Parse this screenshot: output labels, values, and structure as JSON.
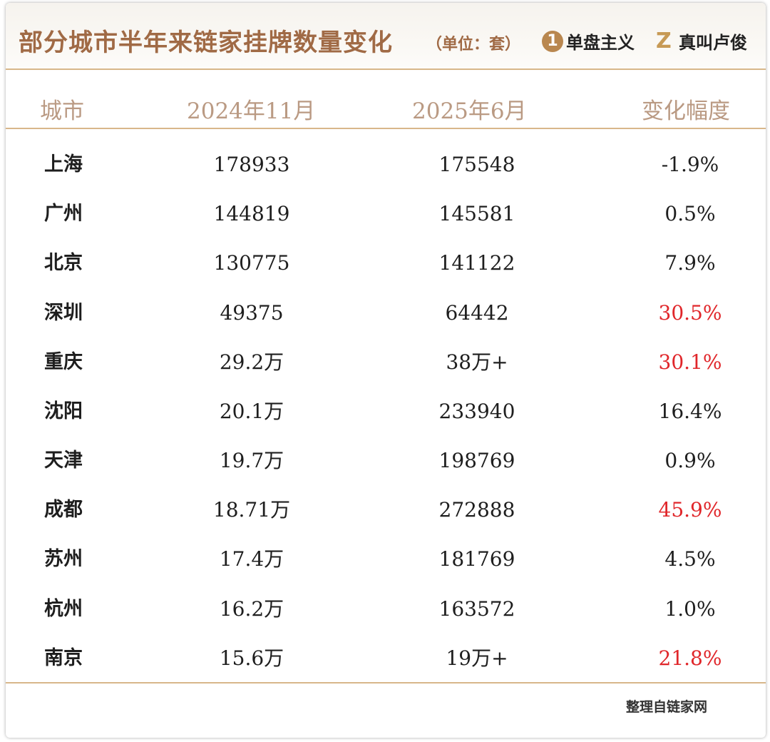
{
  "header": {
    "title": "部分城市半年来链家挂牌数量变化",
    "unit": "（单位：套）",
    "brand1": {
      "mark": "1",
      "name": "单盘主义"
    },
    "brand2": {
      "mark": "Z",
      "name": "真叫卢俊"
    }
  },
  "table": {
    "columns": [
      "城市",
      "2024年11月",
      "2025年6月",
      "变化幅度"
    ],
    "rows": [
      {
        "city": "上海",
        "nov_2024": "178933",
        "jun_2025": "175548",
        "change": "-1.9%",
        "highlight": false
      },
      {
        "city": "广州",
        "nov_2024": "144819",
        "jun_2025": "145581",
        "change": "0.5%",
        "highlight": false
      },
      {
        "city": "北京",
        "nov_2024": "130775",
        "jun_2025": "141122",
        "change": "7.9%",
        "highlight": false
      },
      {
        "city": "深圳",
        "nov_2024": "49375",
        "jun_2025": "64442",
        "change": "30.5%",
        "highlight": true
      },
      {
        "city": "重庆",
        "nov_2024": "29.2万",
        "jun_2025": "38万+",
        "change": "30.1%",
        "highlight": true
      },
      {
        "city": "沈阳",
        "nov_2024": "20.1万",
        "jun_2025": "233940",
        "change": "16.4%",
        "highlight": false
      },
      {
        "city": "天津",
        "nov_2024": "19.7万",
        "jun_2025": "198769",
        "change": "0.9%",
        "highlight": false
      },
      {
        "city": "成都",
        "nov_2024": "18.71万",
        "jun_2025": "272888",
        "change": "45.9%",
        "highlight": true
      },
      {
        "city": "苏州",
        "nov_2024": "17.4万",
        "jun_2025": "181769",
        "change": "4.5%",
        "highlight": false
      },
      {
        "city": "杭州",
        "nov_2024": "16.2万",
        "jun_2025": "163572",
        "change": "1.0%",
        "highlight": false
      },
      {
        "city": "南京",
        "nov_2024": "15.6万",
        "jun_2025": "19万+",
        "change": "21.8%",
        "highlight": true
      }
    ]
  },
  "footer": {
    "source": "整理自链家网"
  },
  "colors": {
    "title": "#a06a45",
    "header_text": "#ba9a83",
    "rule": "#d8b78a",
    "highlight": "#e0262a",
    "text": "#1e1e1e"
  }
}
